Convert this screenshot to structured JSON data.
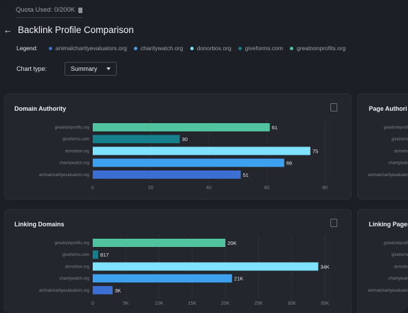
{
  "header": {
    "quota_text": "Quota Used: 0/200K",
    "title": "Backlink Profile Comparison"
  },
  "legend": {
    "label": "Legend:",
    "items": [
      {
        "name": "animalcharityevaluators.org",
        "color": "#3b6fd4"
      },
      {
        "name": "charitywatch.org",
        "color": "#3ea1f0"
      },
      {
        "name": "donorbox.org",
        "color": "#7fe3ff"
      },
      {
        "name": "giveforms.com",
        "color": "#157f8c"
      },
      {
        "name": "greatnonprofits.org",
        "color": "#4fc49e"
      }
    ]
  },
  "chart_type": {
    "label": "Chart type:",
    "selected": "Summary"
  },
  "colors": {
    "animalcharityevaluators.org": "#3b6fd4",
    "charitywatch.org": "#3ea1f0",
    "donorbox.org": "#7fe3ff",
    "giveforms.com": "#157f8c",
    "greatnonprofits.org": "#4fc49e"
  },
  "side_titles": [
    "Page Authori",
    "Linking Pages"
  ],
  "chart_data": [
    {
      "type": "bar",
      "title": "Domain Authority",
      "categories": [
        "greatnonprofits.org",
        "giveforms.com",
        "donorbox.org",
        "charitywatch.org",
        "animalcharityevaluators.org"
      ],
      "values": [
        61,
        30,
        75,
        66,
        51
      ],
      "value_labels": [
        "61",
        "30",
        "75",
        "66",
        "51"
      ],
      "ticks": [
        0,
        20,
        40,
        60,
        80
      ],
      "tick_labels": [
        "0",
        "20",
        "40",
        "60",
        "80"
      ],
      "xlim": [
        0,
        80
      ]
    },
    {
      "type": "bar",
      "title": "Linking Domains",
      "categories": [
        "greatnonprofits.org",
        "giveforms.com",
        "donorbox.org",
        "charitywatch.org",
        "animalcharityevaluators.org"
      ],
      "values": [
        20000,
        817,
        34000,
        21000,
        3000
      ],
      "value_labels": [
        "20K",
        "817",
        "34K",
        "21K",
        "3K"
      ],
      "ticks": [
        0,
        5000,
        10000,
        15000,
        20000,
        25000,
        30000,
        35000
      ],
      "tick_labels": [
        "0",
        "5K",
        "10K",
        "15K",
        "20K",
        "25K",
        "30K",
        "35K"
      ],
      "xlim": [
        0,
        35000
      ]
    }
  ]
}
